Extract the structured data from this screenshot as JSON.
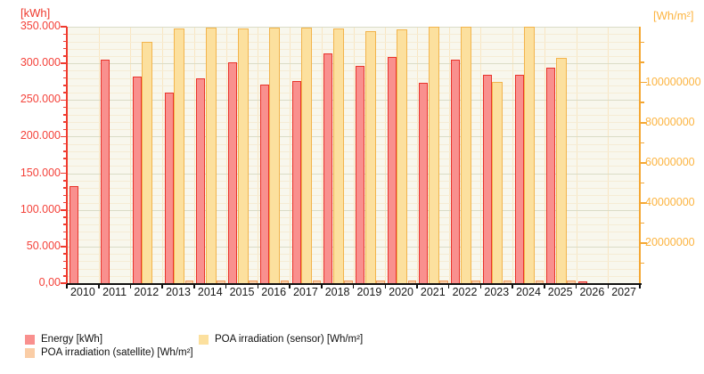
{
  "chart": {
    "left_axis": {
      "title": "[kWh]",
      "tick_labels": [
        "350.000",
        "300.000",
        "250.000",
        "200.000",
        "150.000",
        "100.000",
        "50.000",
        "0,00"
      ],
      "color": "#EF3B2F"
    },
    "right_axis": {
      "title": "[Wh/m²]",
      "tick_labels": [
        "100000000",
        "80000000",
        "60000000",
        "40000000",
        "20000000"
      ],
      "color": "#F4A733"
    },
    "x_axis": {
      "tick_labels": [
        "2010",
        "2011",
        "2012",
        "2013",
        "2014",
        "2015",
        "2016",
        "2017",
        "2018",
        "2019",
        "2020",
        "2021",
        "2022",
        "2023",
        "2024",
        "2025",
        "2026",
        "2027"
      ]
    },
    "legend": [
      {
        "label": "Energy [kWh]",
        "color": "#F9908E"
      },
      {
        "label": "POA irradiation (satellite) [Wh/m²]",
        "color": "#FACDA6"
      },
      {
        "label": "POA irradiation (sensor) [Wh/m²]",
        "color": "#FCE09E"
      }
    ]
  },
  "chart_data": {
    "type": "bar",
    "title": "",
    "categories": [
      "2010",
      "2011",
      "2012",
      "2013",
      "2014",
      "2015",
      "2016",
      "2017",
      "2018",
      "2019",
      "2020",
      "2021",
      "2022",
      "2023",
      "2024",
      "2025",
      "2026",
      "2027"
    ],
    "series": [
      {
        "name": "Energy [kWh]",
        "axis": "left",
        "values": [
          132000,
          305000,
          282000,
          260000,
          279000,
          302000,
          271000,
          276000,
          314000,
          297000,
          309000,
          274000,
          305000,
          284000,
          285000,
          294000,
          2500,
          null
        ]
      },
      {
        "name": "POA irradiation (sensor) [Wh/m²]",
        "axis": "right",
        "values": [
          null,
          null,
          120500000,
          127000000,
          127500000,
          126800000,
          127300000,
          127300000,
          127000000,
          125600000,
          126300000,
          128000000,
          128000000,
          100500000,
          128000000,
          112400000,
          null,
          null
        ]
      },
      {
        "name": "POA irradiation (satellite) [Wh/m²]",
        "axis": "right",
        "values": [
          null,
          null,
          null,
          1200000,
          1200000,
          1200000,
          1200000,
          1200000,
          1200000,
          1200000,
          1200000,
          1200000,
          1200000,
          1200000,
          1200000,
          1200000,
          null,
          null
        ]
      }
    ],
    "xlabel": "",
    "ylabel_left": "[kWh]",
    "ylabel_right": "[Wh/m²]",
    "ylim_left": [
      0,
      350000
    ],
    "ylim_right": [
      0,
      127800000
    ],
    "left_major_step": 50000,
    "left_minor_step": 10000,
    "right_label_step": 20000000,
    "right_minor_step": 10000000,
    "grid": true,
    "legend_position": "bottom-left"
  }
}
